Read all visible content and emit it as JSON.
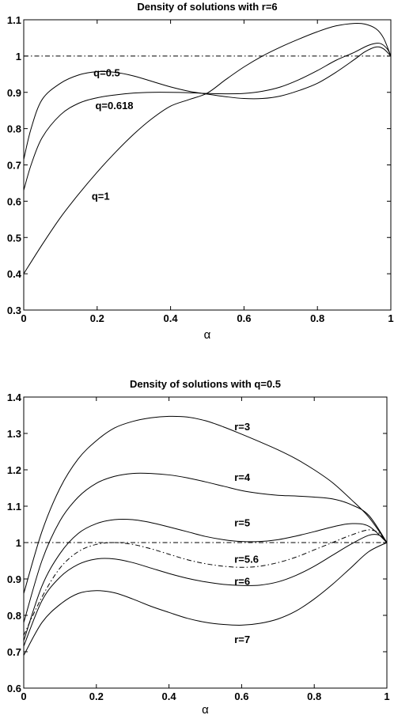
{
  "chart_data": [
    {
      "type": "line",
      "title": "Density of solutions with r=6",
      "xlabel": "α",
      "ylabel": "",
      "xlim": [
        0,
        1
      ],
      "ylim": [
        0.3,
        1.1
      ],
      "xticks": [
        "0",
        "0.2",
        "0.4",
        "0.6",
        "0.8",
        "1"
      ],
      "yticks": [
        "0.3",
        "0.4",
        "0.5",
        "0.6",
        "0.7",
        "0.8",
        "0.9",
        "1",
        "1.1"
      ],
      "reference_line": {
        "y": 1,
        "style": "dash-dot"
      },
      "grid": false,
      "series": [
        {
          "name": "q=0.5",
          "style": "solid",
          "points": [
            [
              0,
              0.715
            ],
            [
              0.02,
              0.8
            ],
            [
              0.05,
              0.88
            ],
            [
              0.1,
              0.925
            ],
            [
              0.15,
              0.948
            ],
            [
              0.2,
              0.957
            ],
            [
              0.25,
              0.955
            ],
            [
              0.3,
              0.945
            ],
            [
              0.35,
              0.93
            ],
            [
              0.4,
              0.915
            ],
            [
              0.45,
              0.903
            ],
            [
              0.5,
              0.895
            ],
            [
              0.55,
              0.888
            ],
            [
              0.6,
              0.883
            ],
            [
              0.65,
              0.883
            ],
            [
              0.7,
              0.89
            ],
            [
              0.75,
              0.905
            ],
            [
              0.8,
              0.925
            ],
            [
              0.85,
              0.955
            ],
            [
              0.9,
              0.99
            ],
            [
              0.93,
              1.012
            ],
            [
              0.96,
              1.025
            ],
            [
              0.98,
              1.02
            ],
            [
              1,
              1.0
            ]
          ]
        },
        {
          "name": "q=0.618",
          "style": "solid",
          "points": [
            [
              0,
              0.63
            ],
            [
              0.02,
              0.7
            ],
            [
              0.05,
              0.775
            ],
            [
              0.1,
              0.838
            ],
            [
              0.15,
              0.87
            ],
            [
              0.2,
              0.885
            ],
            [
              0.25,
              0.893
            ],
            [
              0.3,
              0.898
            ],
            [
              0.35,
              0.9
            ],
            [
              0.4,
              0.9
            ],
            [
              0.45,
              0.899
            ],
            [
              0.5,
              0.897
            ],
            [
              0.55,
              0.896
            ],
            [
              0.6,
              0.897
            ],
            [
              0.65,
              0.903
            ],
            [
              0.7,
              0.915
            ],
            [
              0.75,
              0.935
            ],
            [
              0.8,
              0.96
            ],
            [
              0.85,
              0.988
            ],
            [
              0.9,
              1.01
            ],
            [
              0.94,
              1.03
            ],
            [
              0.97,
              1.035
            ],
            [
              0.99,
              1.02
            ],
            [
              1,
              1.0
            ]
          ]
        },
        {
          "name": "q=1",
          "style": "solid",
          "points": [
            [
              0,
              0.4
            ],
            [
              0.05,
              0.48
            ],
            [
              0.1,
              0.555
            ],
            [
              0.15,
              0.62
            ],
            [
              0.2,
              0.68
            ],
            [
              0.25,
              0.735
            ],
            [
              0.3,
              0.785
            ],
            [
              0.35,
              0.828
            ],
            [
              0.4,
              0.862
            ],
            [
              0.45,
              0.88
            ],
            [
              0.5,
              0.898
            ],
            [
              0.55,
              0.935
            ],
            [
              0.6,
              0.97
            ],
            [
              0.65,
              1.0
            ],
            [
              0.7,
              1.025
            ],
            [
              0.75,
              1.047
            ],
            [
              0.8,
              1.067
            ],
            [
              0.85,
              1.083
            ],
            [
              0.9,
              1.09
            ],
            [
              0.93,
              1.088
            ],
            [
              0.96,
              1.075
            ],
            [
              0.98,
              1.05
            ],
            [
              1,
              1.0
            ]
          ]
        }
      ],
      "annotations": [
        {
          "text": "q=0.5",
          "x": 0.19,
          "y": 0.955
        },
        {
          "text": "q=0.618",
          "x": 0.195,
          "y": 0.865
        },
        {
          "text": "q=1",
          "x": 0.185,
          "y": 0.615
        }
      ]
    },
    {
      "type": "line",
      "title": "Density of solutions with q=0.5",
      "xlabel": "α",
      "ylabel": "",
      "xlim": [
        0,
        1
      ],
      "ylim": [
        0.6,
        1.4
      ],
      "xticks": [
        "0",
        "0.2",
        "0.4",
        "0.6",
        "0.8",
        "1"
      ],
      "yticks": [
        "0.6",
        "0.7",
        "0.8",
        "0.9",
        "1",
        "1.1",
        "1.2",
        "1.3",
        "1.4"
      ],
      "reference_line": {
        "y": 1,
        "style": "dash-dot"
      },
      "grid": false,
      "series": [
        {
          "name": "r=3",
          "style": "solid",
          "points": [
            [
              0,
              0.86
            ],
            [
              0.05,
              1.03
            ],
            [
              0.1,
              1.15
            ],
            [
              0.15,
              1.23
            ],
            [
              0.2,
              1.28
            ],
            [
              0.25,
              1.315
            ],
            [
              0.3,
              1.333
            ],
            [
              0.35,
              1.343
            ],
            [
              0.4,
              1.347
            ],
            [
              0.45,
              1.345
            ],
            [
              0.5,
              1.335
            ],
            [
              0.55,
              1.318
            ],
            [
              0.6,
              1.298
            ],
            [
              0.65,
              1.277
            ],
            [
              0.7,
              1.255
            ],
            [
              0.75,
              1.23
            ],
            [
              0.8,
              1.2
            ],
            [
              0.85,
              1.165
            ],
            [
              0.9,
              1.12
            ],
            [
              0.95,
              1.07
            ],
            [
              1,
              1.0
            ]
          ]
        },
        {
          "name": "r=4",
          "style": "solid",
          "points": [
            [
              0,
              0.78
            ],
            [
              0.05,
              0.95
            ],
            [
              0.1,
              1.06
            ],
            [
              0.15,
              1.125
            ],
            [
              0.2,
              1.163
            ],
            [
              0.25,
              1.182
            ],
            [
              0.3,
              1.19
            ],
            [
              0.35,
              1.19
            ],
            [
              0.4,
              1.186
            ],
            [
              0.45,
              1.178
            ],
            [
              0.5,
              1.167
            ],
            [
              0.55,
              1.155
            ],
            [
              0.6,
              1.143
            ],
            [
              0.65,
              1.135
            ],
            [
              0.7,
              1.13
            ],
            [
              0.75,
              1.128
            ],
            [
              0.8,
              1.125
            ],
            [
              0.85,
              1.12
            ],
            [
              0.9,
              1.105
            ],
            [
              0.95,
              1.075
            ],
            [
              1,
              1.0
            ]
          ]
        },
        {
          "name": "r=5",
          "style": "solid",
          "points": [
            [
              0,
              0.73
            ],
            [
              0.05,
              0.88
            ],
            [
              0.1,
              0.97
            ],
            [
              0.15,
              1.025
            ],
            [
              0.2,
              1.052
            ],
            [
              0.25,
              1.063
            ],
            [
              0.3,
              1.063
            ],
            [
              0.35,
              1.055
            ],
            [
              0.4,
              1.043
            ],
            [
              0.45,
              1.03
            ],
            [
              0.5,
              1.017
            ],
            [
              0.55,
              1.008
            ],
            [
              0.6,
              1.003
            ],
            [
              0.65,
              1.003
            ],
            [
              0.7,
              1.008
            ],
            [
              0.75,
              1.018
            ],
            [
              0.8,
              1.03
            ],
            [
              0.85,
              1.043
            ],
            [
              0.9,
              1.052
            ],
            [
              0.95,
              1.045
            ],
            [
              1,
              1.0
            ]
          ]
        },
        {
          "name": "r=5.6",
          "style": "dash-dot",
          "points": [
            [
              0,
              0.745
            ],
            [
              0.05,
              0.85
            ],
            [
              0.1,
              0.93
            ],
            [
              0.15,
              0.975
            ],
            [
              0.2,
              0.995
            ],
            [
              0.25,
              1.0
            ],
            [
              0.3,
              0.995
            ],
            [
              0.35,
              0.983
            ],
            [
              0.4,
              0.968
            ],
            [
              0.45,
              0.953
            ],
            [
              0.5,
              0.942
            ],
            [
              0.55,
              0.935
            ],
            [
              0.6,
              0.932
            ],
            [
              0.65,
              0.935
            ],
            [
              0.7,
              0.945
            ],
            [
              0.75,
              0.96
            ],
            [
              0.8,
              0.98
            ],
            [
              0.85,
              1.0
            ],
            [
              0.9,
              1.02
            ],
            [
              0.95,
              1.035
            ],
            [
              0.98,
              1.025
            ],
            [
              1,
              1.0
            ]
          ]
        },
        {
          "name": "r=6",
          "style": "solid",
          "points": [
            [
              0,
              0.715
            ],
            [
              0.05,
              0.84
            ],
            [
              0.1,
              0.905
            ],
            [
              0.15,
              0.94
            ],
            [
              0.2,
              0.955
            ],
            [
              0.25,
              0.955
            ],
            [
              0.3,
              0.945
            ],
            [
              0.35,
              0.93
            ],
            [
              0.4,
              0.915
            ],
            [
              0.45,
              0.902
            ],
            [
              0.5,
              0.892
            ],
            [
              0.55,
              0.885
            ],
            [
              0.6,
              0.882
            ],
            [
              0.65,
              0.883
            ],
            [
              0.7,
              0.892
            ],
            [
              0.75,
              0.91
            ],
            [
              0.8,
              0.935
            ],
            [
              0.85,
              0.965
            ],
            [
              0.9,
              0.995
            ],
            [
              0.95,
              1.02
            ],
            [
              0.98,
              1.02
            ],
            [
              1,
              1.0
            ]
          ]
        },
        {
          "name": "r=7",
          "style": "solid",
          "points": [
            [
              0,
              0.69
            ],
            [
              0.05,
              0.78
            ],
            [
              0.1,
              0.83
            ],
            [
              0.15,
              0.86
            ],
            [
              0.2,
              0.868
            ],
            [
              0.25,
              0.862
            ],
            [
              0.3,
              0.845
            ],
            [
              0.35,
              0.825
            ],
            [
              0.4,
              0.808
            ],
            [
              0.45,
              0.792
            ],
            [
              0.5,
              0.781
            ],
            [
              0.55,
              0.775
            ],
            [
              0.6,
              0.773
            ],
            [
              0.65,
              0.778
            ],
            [
              0.7,
              0.79
            ],
            [
              0.75,
              0.812
            ],
            [
              0.8,
              0.845
            ],
            [
              0.85,
              0.885
            ],
            [
              0.9,
              0.93
            ],
            [
              0.95,
              0.975
            ],
            [
              1,
              1.0
            ]
          ]
        }
      ],
      "annotations": [
        {
          "text": "r=3",
          "x": 0.58,
          "y": 1.32
        },
        {
          "text": "r=4",
          "x": 0.58,
          "y": 1.18
        },
        {
          "text": "r=5",
          "x": 0.58,
          "y": 1.055
        },
        {
          "text": "r=5.6",
          "x": 0.58,
          "y": 0.955
        },
        {
          "text": "r=6",
          "x": 0.58,
          "y": 0.895
        },
        {
          "text": "r=7",
          "x": 0.58,
          "y": 0.735
        }
      ]
    }
  ]
}
